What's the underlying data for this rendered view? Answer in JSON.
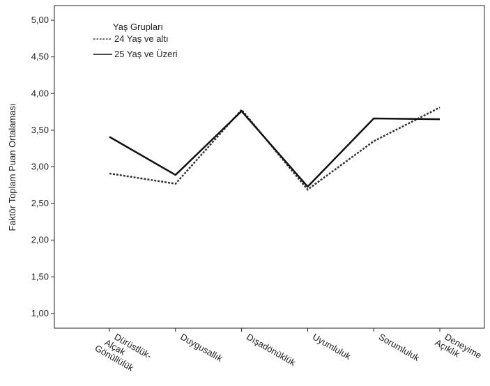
{
  "chart_data": {
    "type": "line",
    "title": "",
    "xlabel": "",
    "ylabel": "Faktör Toplam Puan Ortalaması",
    "ylim": [
      0.8,
      5.2
    ],
    "yticks": [
      "1,00",
      "1,50",
      "2,00",
      "2,50",
      "3,00",
      "3,50",
      "4,00",
      "4,50",
      "5,00"
    ],
    "ytick_values": [
      1.0,
      1.5,
      2.0,
      2.5,
      3.0,
      3.5,
      4.0,
      4.5,
      5.0
    ],
    "categories": [
      [
        "Dürüstlük-",
        "Alçak",
        "Gönüllülük"
      ],
      [
        "Duygusallık"
      ],
      [
        "Dışadönüklük"
      ],
      [
        "Uyumluluk"
      ],
      [
        "Sorumluluk"
      ],
      [
        "Deneyime",
        "Açıklık"
      ]
    ],
    "legend_title": "Yaş Grupları",
    "legend_position": "top-left",
    "grid": false,
    "series": [
      {
        "name": "24 Yaş ve altı",
        "style": "dotted",
        "color": "#333333",
        "values": [
          2.91,
          2.77,
          3.78,
          2.69,
          3.35,
          3.81
        ]
      },
      {
        "name": "25 Yaş ve Üzeri",
        "style": "solid",
        "color": "#111111",
        "values": [
          3.41,
          2.89,
          3.76,
          2.73,
          3.66,
          3.65
        ]
      }
    ]
  }
}
